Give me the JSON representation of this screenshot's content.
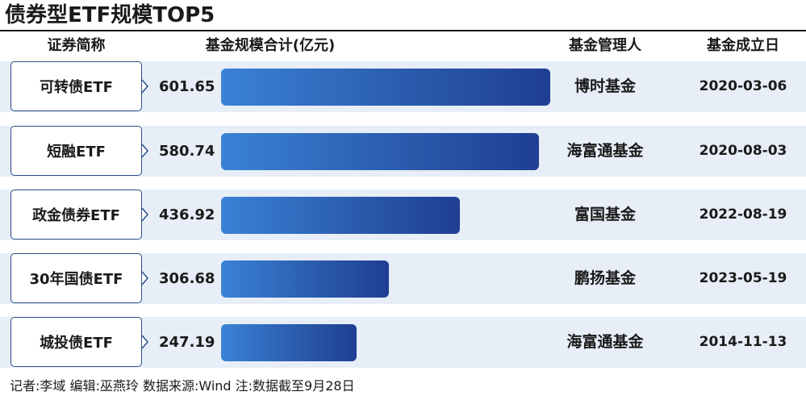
{
  "title": "债券型ETF规模TOP5",
  "headers": {
    "name": "证券简称",
    "scale": "基金规模合计(亿元)",
    "manager": "基金管理人",
    "date": "基金成立日"
  },
  "chart_data": {
    "type": "bar",
    "title": "债券型ETF规模TOP5",
    "ylabel": "基金规模合计(亿元)",
    "categories": [
      "可转债ETF",
      "短融ETF",
      "政金债券ETF",
      "30年国债ETF",
      "城投债ETF"
    ],
    "values": [
      601.65,
      580.74,
      436.92,
      306.68,
      247.19
    ],
    "value_labels": [
      "601.65",
      "580.74",
      "436.92",
      "306.68",
      "247.19"
    ],
    "managers": [
      "博时基金",
      "海富通基金",
      "富国基金",
      "鹏扬基金",
      "海富通基金"
    ],
    "dates": [
      "2020-03-06",
      "2020-08-03",
      "2022-08-19",
      "2023-05-19",
      "2014-11-13"
    ],
    "orientation": "horizontal",
    "grid": false,
    "bar_color": "#2b5cad"
  },
  "footer": "记者:李域  编辑:巫燕玲  数据来源:Wind  注:数据截至9月28日"
}
